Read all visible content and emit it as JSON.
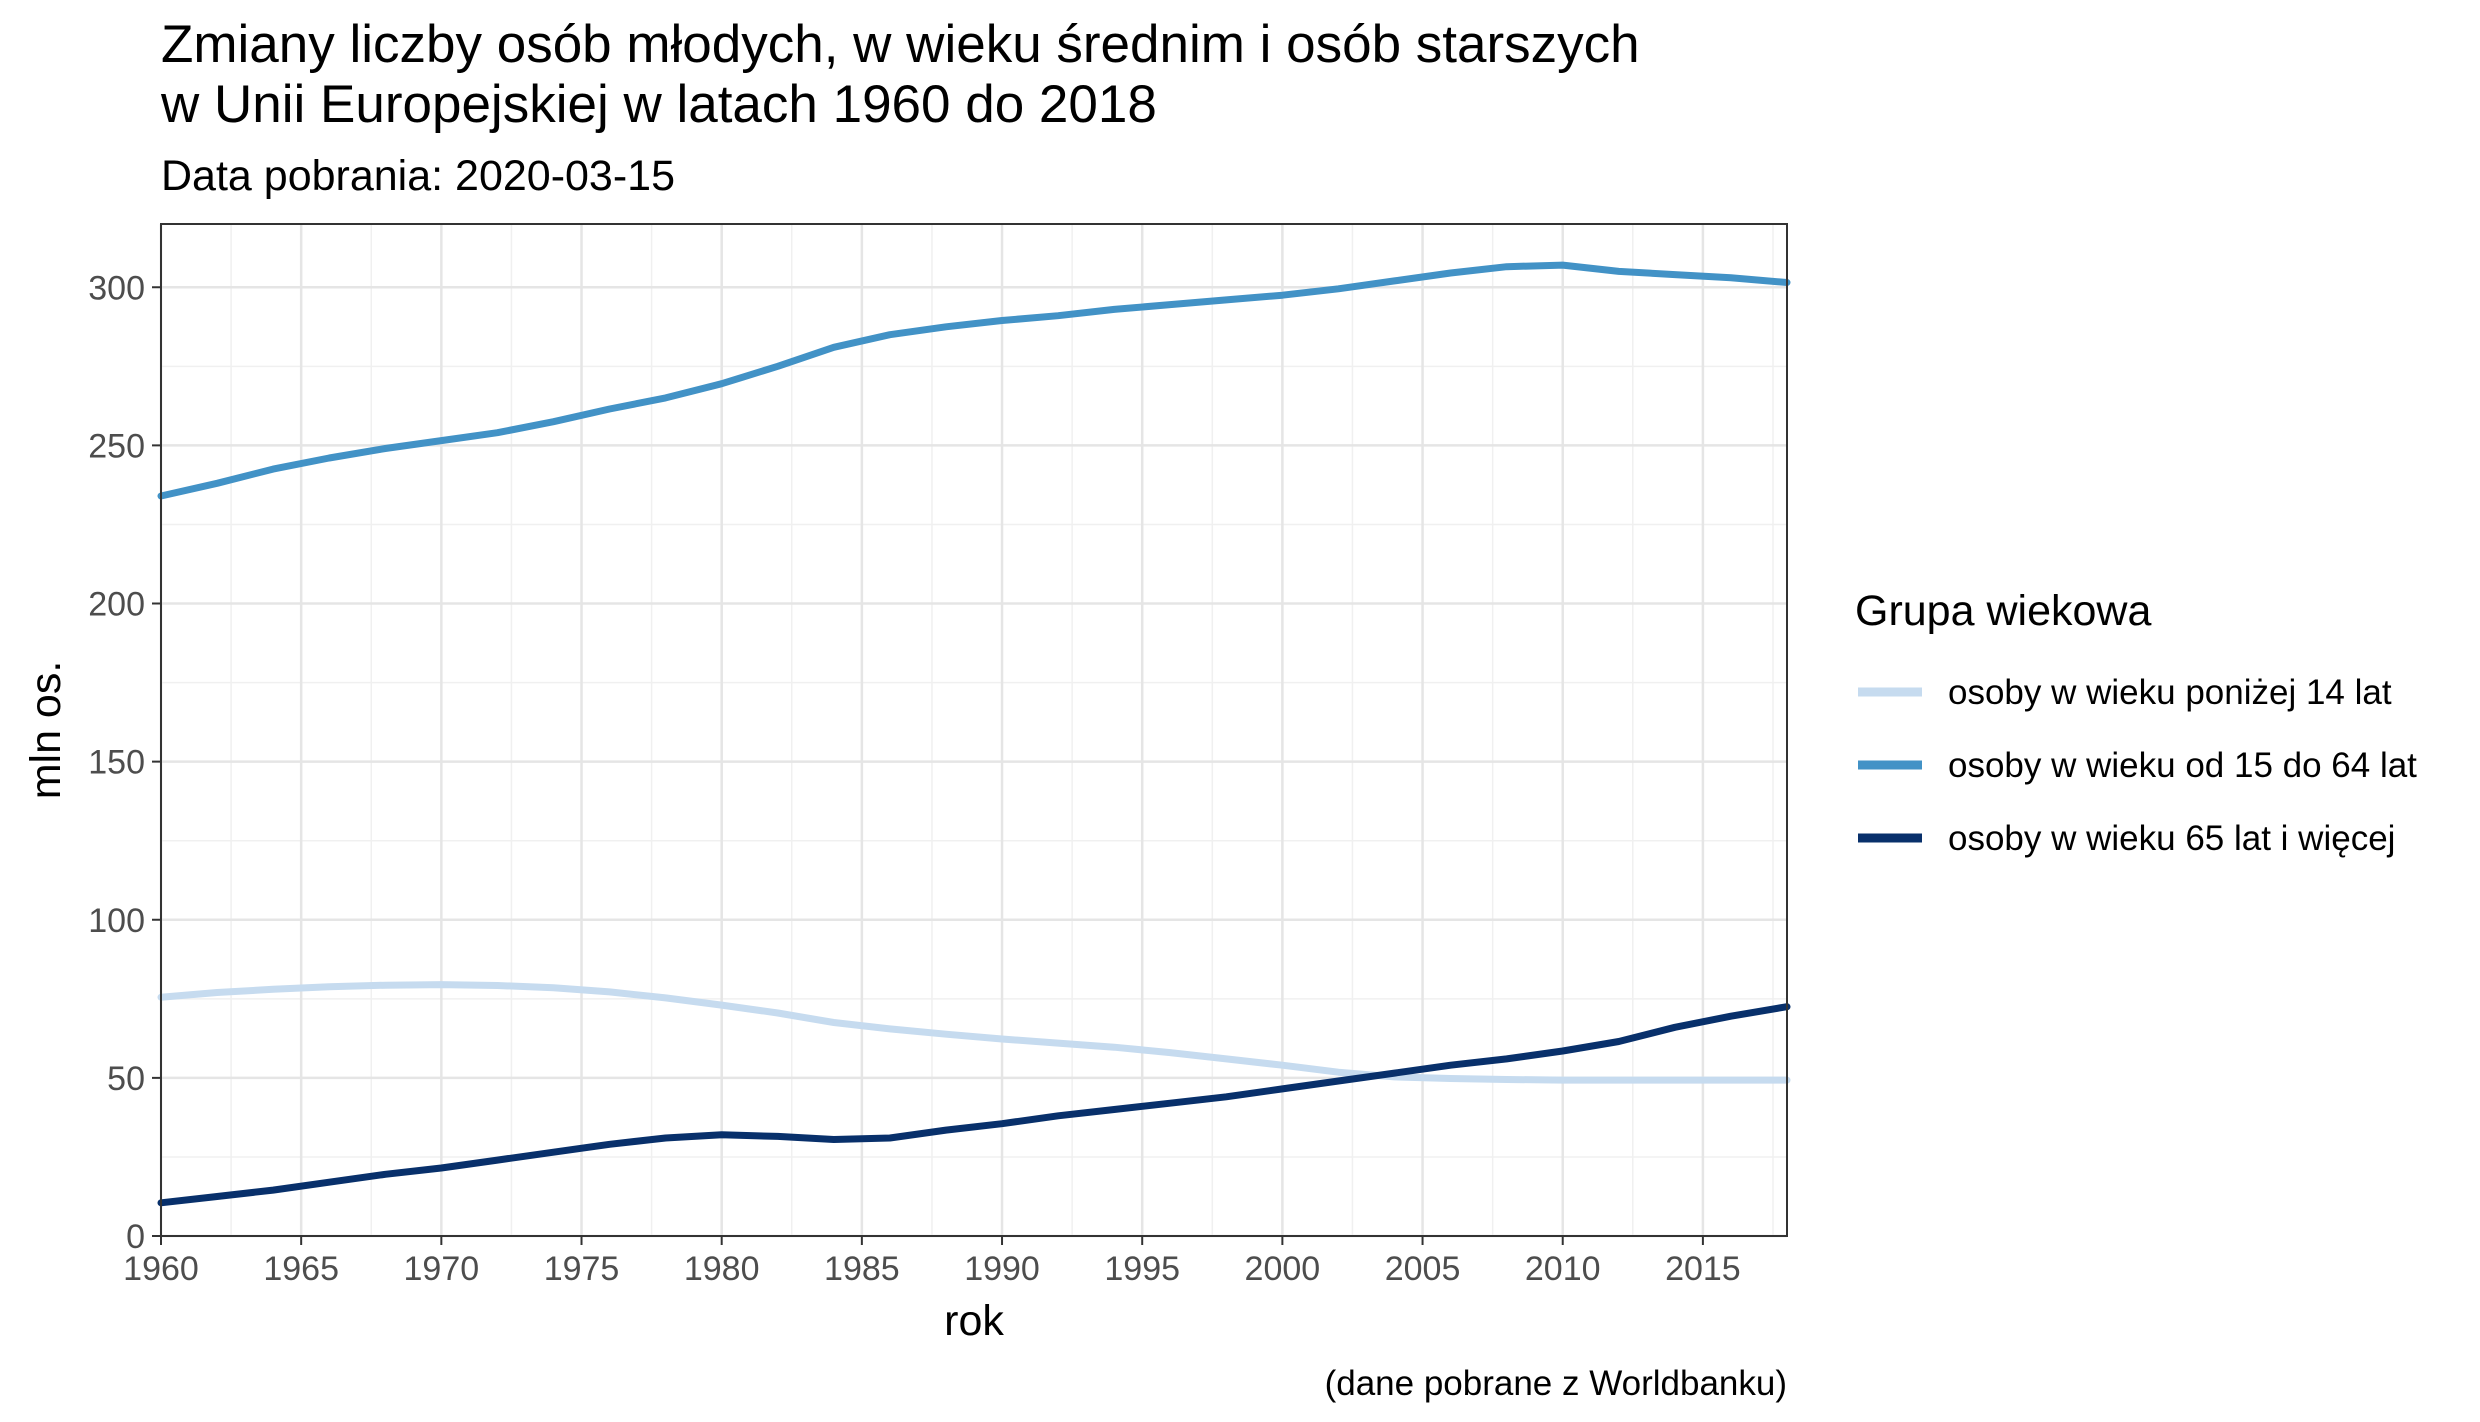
{
  "chart_data": {
    "type": "line",
    "title_line1": "Zmiany liczby osób młodych, w wieku średnim i osób starszych",
    "title_line2": "w Unii Europejskiej w latach 1960 do  2018",
    "subtitle": "Data pobrania: 2020-03-15",
    "xlabel": "rok",
    "ylabel": "mln os.",
    "caption": "(dane pobrane z Worldbanku)",
    "legend_title": "Grupa wiekowa",
    "legend_position": "right",
    "xlim": [
      1960,
      2018
    ],
    "ylim": [
      0,
      320
    ],
    "x_ticks": [
      "1960",
      "1965",
      "1970",
      "1975",
      "1980",
      "1985",
      "1990",
      "1995",
      "2000",
      "2005",
      "2010",
      "2015"
    ],
    "y_ticks": [
      "0",
      "50",
      "100",
      "150",
      "200",
      "250",
      "300"
    ],
    "grid": true,
    "series": [
      {
        "name": "osoby w wieku poniżej 14 lat",
        "color": "#c6dbef",
        "x": [
          1960,
          1962,
          1964,
          1966,
          1968,
          1970,
          1972,
          1974,
          1976,
          1978,
          1980,
          1982,
          1984,
          1986,
          1988,
          1990,
          1992,
          1994,
          1996,
          1998,
          2000,
          2002,
          2004,
          2006,
          2008,
          2010,
          2012,
          2014,
          2016,
          2018
        ],
        "y": [
          75.5,
          77,
          78,
          78.8,
          79.3,
          79.5,
          79.2,
          78.5,
          77.2,
          75.3,
          73,
          70.5,
          67.5,
          65.5,
          63.8,
          62.3,
          61,
          59.7,
          58,
          56,
          54,
          51.8,
          50.3,
          49.8,
          49.5,
          49.3,
          49.3,
          49.3,
          49.3,
          49.3
        ]
      },
      {
        "name": "osoby w wieku od 15 do 64 lat",
        "color": "#4292c6",
        "x": [
          1960,
          1962,
          1964,
          1966,
          1968,
          1970,
          1972,
          1974,
          1976,
          1978,
          1980,
          1982,
          1984,
          1986,
          1988,
          1990,
          1992,
          1994,
          1996,
          1998,
          2000,
          2002,
          2004,
          2006,
          2008,
          2010,
          2012,
          2014,
          2016,
          2018
        ],
        "y": [
          234,
          238,
          242.5,
          246,
          249,
          251.5,
          254,
          257.5,
          261.5,
          265,
          269.5,
          275,
          281,
          285,
          287.5,
          289.5,
          291,
          293,
          294.5,
          296,
          297.5,
          299.5,
          302,
          304.5,
          306.5,
          307,
          305,
          304,
          303,
          301.5
        ]
      },
      {
        "name": "osoby w wieku 65 lat i więcej",
        "color": "#08306b",
        "x": [
          1960,
          1962,
          1964,
          1966,
          1968,
          1970,
          1972,
          1974,
          1976,
          1978,
          1980,
          1982,
          1984,
          1986,
          1988,
          1990,
          1992,
          1994,
          1996,
          1998,
          2000,
          2002,
          2004,
          2006,
          2008,
          2010,
          2012,
          2014,
          2016,
          2018
        ],
        "y": [
          10.5,
          12.5,
          14.5,
          17,
          19.5,
          21.5,
          24,
          26.5,
          29,
          31,
          32,
          31.5,
          30.5,
          31,
          33.5,
          35.5,
          38,
          40,
          42,
          44,
          46.5,
          49,
          51.5,
          54,
          56,
          58.5,
          61.5,
          66,
          69.5,
          72.5
        ]
      }
    ]
  }
}
